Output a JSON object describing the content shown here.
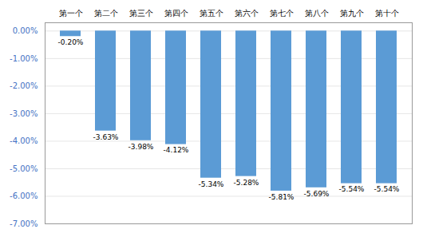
{
  "chart_data": {
    "type": "bar",
    "categories": [
      "第一个",
      "第二个",
      "第三个",
      "第四个",
      "第五个",
      "第六个",
      "第七个",
      "第八个",
      "第九个",
      "第十个"
    ],
    "values": [
      -0.2,
      -3.63,
      -3.98,
      -4.12,
      -5.34,
      -5.28,
      -5.81,
      -5.69,
      -5.54,
      -5.54
    ],
    "value_labels": [
      "-0.20%",
      "-3.63%",
      "-3.98%",
      "-4.12%",
      "-5.34%",
      "-5.28%",
      "-5.81%",
      "-5.69%",
      "-5.54%",
      "-5.54%"
    ],
    "data_labels": true,
    "color": "#5B9BD5",
    "ylim": [
      -7.0,
      0.3
    ],
    "yticks": [
      {
        "value": 0.0,
        "label": "0.00%"
      },
      {
        "value": -1.0,
        "label": "-1.00%"
      },
      {
        "value": -2.0,
        "label": "-2.00%"
      },
      {
        "value": -3.0,
        "label": "-3.00%"
      },
      {
        "value": -4.0,
        "label": "-4.00%"
      },
      {
        "value": -5.0,
        "label": "-5.00%"
      },
      {
        "value": -6.0,
        "label": "-6.00%"
      },
      {
        "value": -7.0,
        "label": "-7.00%"
      }
    ],
    "grid": true
  }
}
